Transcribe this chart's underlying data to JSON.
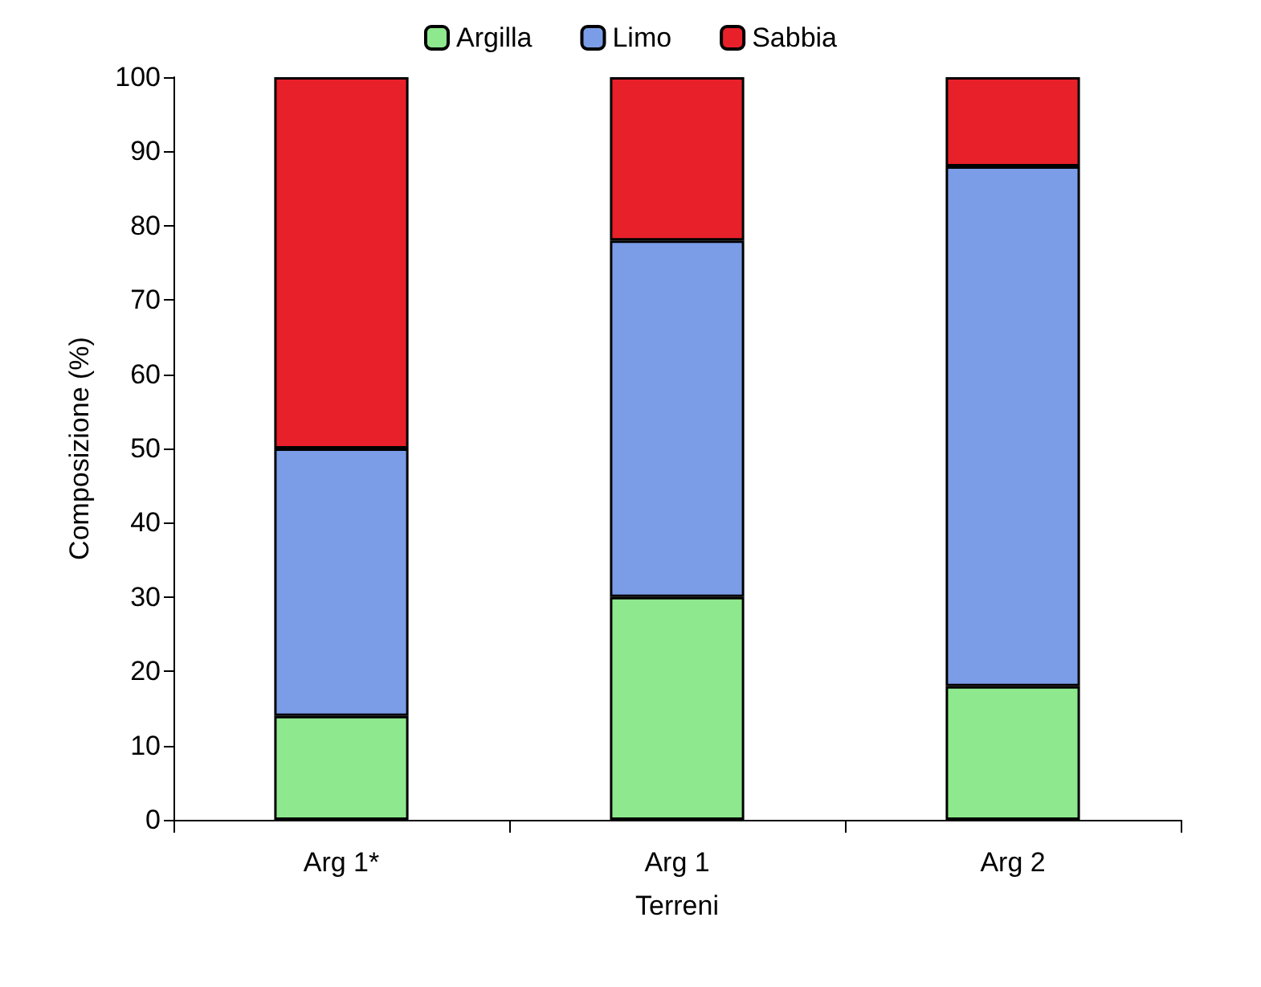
{
  "chart_data": {
    "type": "bar",
    "stacked": true,
    "xlabel": "Terreni",
    "ylabel": "Composizione (%)",
    "categories": [
      "Arg 1*",
      "Arg 1",
      "Arg 2"
    ],
    "series": [
      {
        "name": "Argilla",
        "color": "#8ee88e",
        "values": [
          14,
          30,
          18
        ]
      },
      {
        "name": "Limo",
        "color": "#7b9de8",
        "values": [
          36,
          48,
          70
        ]
      },
      {
        "name": "Sabbia",
        "color": "#e8202a",
        "values": [
          50,
          22,
          12
        ]
      }
    ],
    "ylim": [
      0,
      100
    ],
    "yticks": [
      0,
      10,
      20,
      30,
      40,
      50,
      60,
      70,
      80,
      90,
      100
    ],
    "grid": false,
    "legend": "top"
  }
}
